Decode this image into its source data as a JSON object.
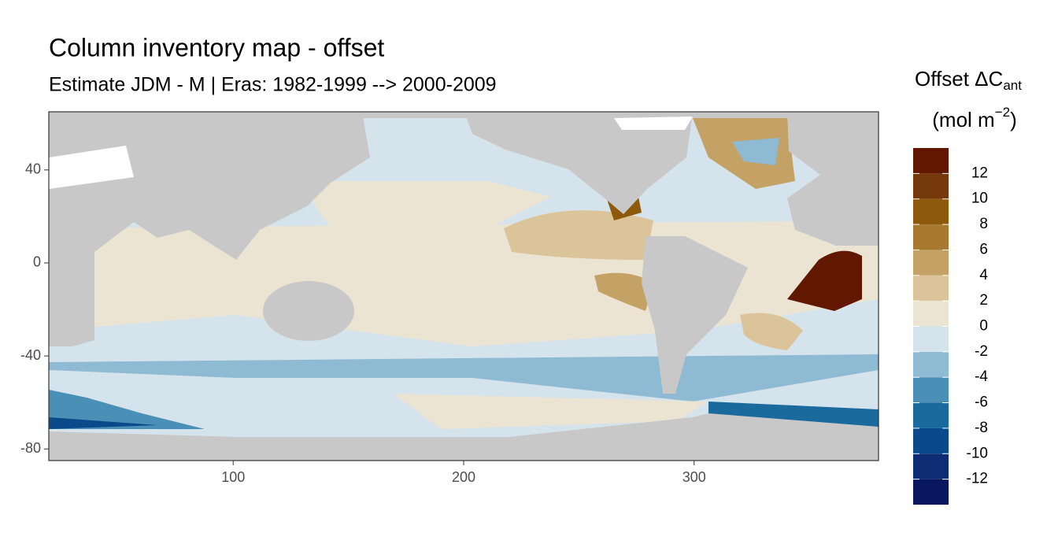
{
  "chart_data": {
    "type": "raster-map",
    "title": "Column inventory map - offset",
    "subtitle": "Estimate JDM - M | Eras: 1982-1999 --> 2000-2009",
    "xlim": [
      20,
      380
    ],
    "xticks": [
      100,
      200,
      300
    ],
    "ylim": [
      -85,
      65
    ],
    "yticks": [
      40,
      0,
      -40,
      -80
    ],
    "legend": {
      "title": [
        "Offset ΔC",
        "ant",
        "(mol m",
        "−2",
        ")"
      ],
      "breaks": [
        -14,
        -12,
        -10,
        -8,
        -6,
        -4,
        -2,
        0,
        2,
        4,
        6,
        8,
        10,
        12,
        14
      ],
      "ticks": [
        -12,
        -10,
        -8,
        -6,
        -4,
        -2,
        0,
        2,
        4,
        6,
        8,
        10,
        12
      ],
      "colors": [
        "#08175e",
        "#0d2c73",
        "#0a4a8a",
        "#1a6a9e",
        "#4a8fb5",
        "#8fbad3",
        "#d5e3ec",
        "#ece4d3",
        "#dcc49a",
        "#c4a265",
        "#a87a30",
        "#8c5a0a",
        "#74380a",
        "#621800"
      ]
    }
  }
}
